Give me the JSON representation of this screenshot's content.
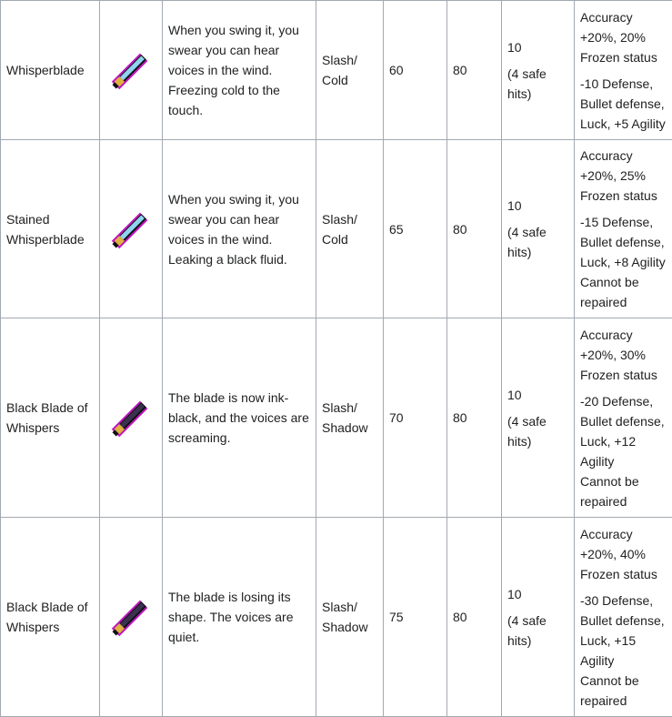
{
  "rows": [
    {
      "name": "Whisperblade",
      "sprite": "whisperblade-sprite",
      "blade_color": "#8fd3f0",
      "desc": "When you swing it, you swear you can hear voices in the wind. Freezing cold to the touch.",
      "type": "Slash/ Cold",
      "damage": "60",
      "stat2": "80",
      "durability": "10",
      "durability_note": "(4 safe hits)",
      "effect1": "Accuracy +20%, 20% Frozen status",
      "effect2": "-10 Defense, Bullet defense, Luck, +5 Agility",
      "effect3": ""
    },
    {
      "name": "Stained Whisperblade",
      "sprite": "stained-whisperblade-sprite",
      "blade_color": "#8fd3f0",
      "desc": "When you swing it, you swear you can hear voices in the wind. Leaking a black fluid.",
      "type": "Slash/ Cold",
      "damage": "65",
      "stat2": "80",
      "durability": "10",
      "durability_note": "(4 safe hits)",
      "effect1": "Accuracy +20%, 25% Frozen status",
      "effect2": "-15 Defense, Bullet defense, Luck, +8 Agility",
      "effect3": "Cannot be repaired"
    },
    {
      "name": "Black Blade of Whispers",
      "sprite": "black-blade-sprite",
      "blade_color": "#3a3350",
      "desc": "The blade is now ink-black, and the voices are screaming.",
      "type": "Slash/ Shadow",
      "damage": "70",
      "stat2": "80",
      "durability": "10",
      "durability_note": "(4 safe hits)",
      "effect1": "Accuracy +20%, 30% Frozen status",
      "effect2": "-20 Defense, Bullet defense, Luck, +12 Agility",
      "effect3": "Cannot be repaired"
    },
    {
      "name": "Black Blade of Whispers",
      "sprite": "black-blade-sprite",
      "blade_color": "#3a3350",
      "desc": "The blade is losing its shape. The voices are quiet.",
      "type": "Slash/ Shadow",
      "damage": "75",
      "stat2": "80",
      "durability": "10",
      "durability_note": "(4 safe hits)",
      "effect1": "Accuracy +20%, 40% Frozen status",
      "effect2": "-30 Defense, Bullet defense, Luck, +15 Agility",
      "effect3": "Cannot be repaired"
    }
  ]
}
